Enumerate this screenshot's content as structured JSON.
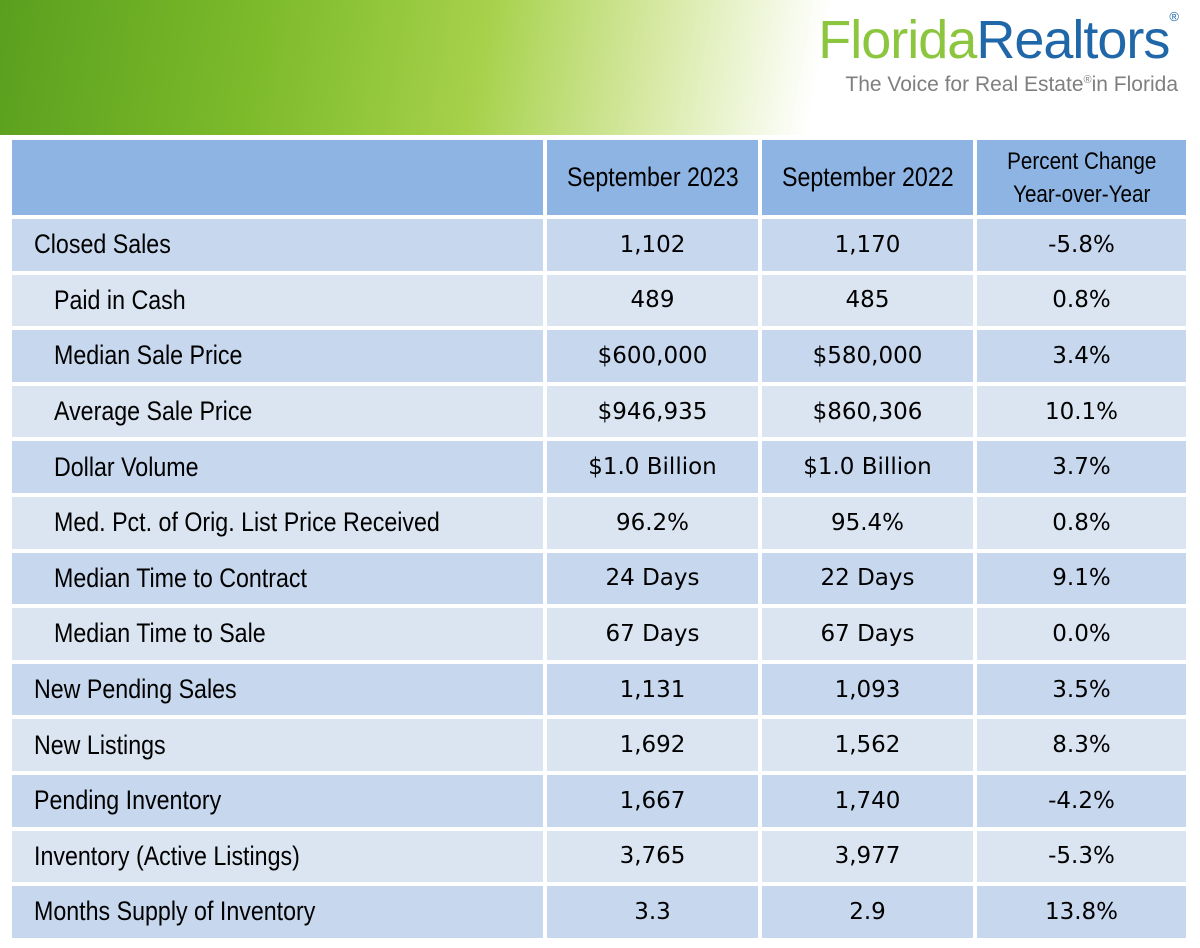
{
  "brand": {
    "name_part1": "Florida",
    "name_part2": "Realtors",
    "reg_mark": "®",
    "tagline_part1": "The Voice for Real Estate",
    "tagline_reg": "®",
    "tagline_part2": "in Florida"
  },
  "colors": {
    "header_fill": "#8db4e2",
    "row_light": "#dbe5f1",
    "row_dark": "#c7d7ee",
    "logo_green": "#8cc63e",
    "logo_blue": "#1f67a8"
  },
  "table": {
    "headers": [
      "",
      "September 2023",
      "September 2022",
      "Percent Change",
      "Year-over-Year"
    ],
    "rows": [
      {
        "label": "Closed Sales",
        "indent": false,
        "sep2023": "1,102",
        "sep2022": "1,170",
        "pct": "-5.8%"
      },
      {
        "label": "Paid in Cash",
        "indent": true,
        "sep2023": "489",
        "sep2022": "485",
        "pct": "0.8%"
      },
      {
        "label": "Median Sale Price",
        "indent": true,
        "sep2023": "$600,000",
        "sep2022": "$580,000",
        "pct": "3.4%"
      },
      {
        "label": "Average Sale Price",
        "indent": true,
        "sep2023": "$946,935",
        "sep2022": "$860,306",
        "pct": "10.1%"
      },
      {
        "label": "Dollar Volume",
        "indent": true,
        "sep2023": "$1.0 Billion",
        "sep2022": "$1.0 Billion",
        "pct": "3.7%"
      },
      {
        "label": "Med. Pct. of Orig. List Price Received",
        "indent": true,
        "sep2023": "96.2%",
        "sep2022": "95.4%",
        "pct": "0.8%"
      },
      {
        "label": "Median Time to Contract",
        "indent": true,
        "sep2023": "24 Days",
        "sep2022": "22 Days",
        "pct": "9.1%"
      },
      {
        "label": "Median Time to Sale",
        "indent": true,
        "sep2023": "67 Days",
        "sep2022": "67 Days",
        "pct": "0.0%"
      },
      {
        "label": "New Pending Sales",
        "indent": false,
        "sep2023": "1,131",
        "sep2022": "1,093",
        "pct": "3.5%"
      },
      {
        "label": "New Listings",
        "indent": false,
        "sep2023": "1,692",
        "sep2022": "1,562",
        "pct": "8.3%"
      },
      {
        "label": "Pending Inventory",
        "indent": false,
        "sep2023": "1,667",
        "sep2022": "1,740",
        "pct": "-4.2%"
      },
      {
        "label": "Inventory (Active Listings)",
        "indent": false,
        "sep2023": "3,765",
        "sep2022": "3,977",
        "pct": "-5.3%"
      },
      {
        "label": "Months Supply of Inventory",
        "indent": false,
        "sep2023": "3.3",
        "sep2022": "2.9",
        "pct": "13.8%"
      }
    ]
  }
}
